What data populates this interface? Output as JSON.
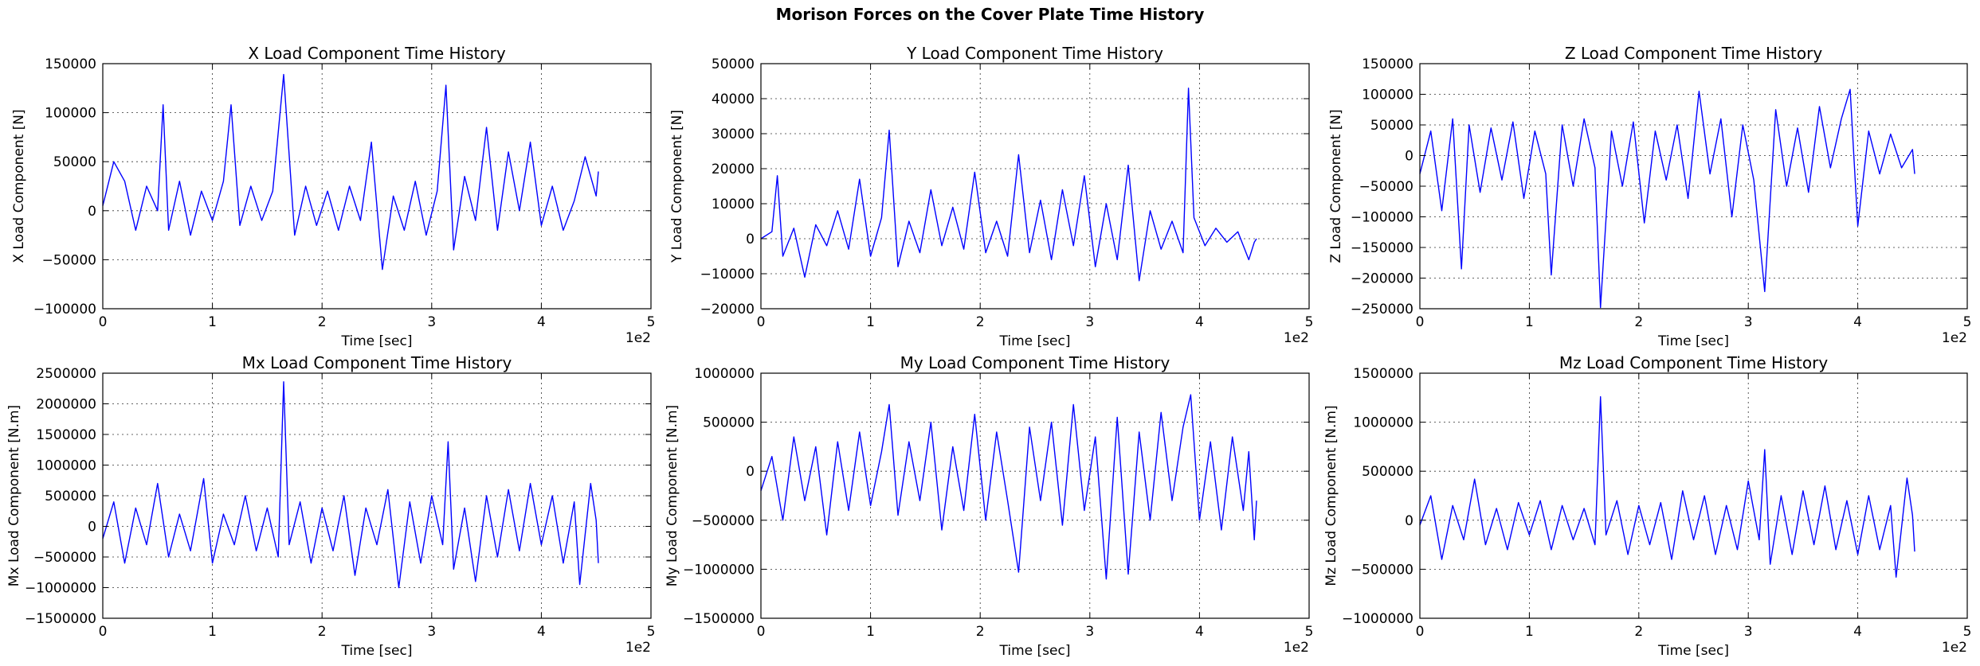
{
  "figure": {
    "suptitle": "Morison Forces on the Cover Plate Time History"
  },
  "chart_data": [
    {
      "type": "line",
      "title": "X Load Component Time History",
      "xlabel": "Time [sec]",
      "ylabel": "X Load Component [N]",
      "xlim": [
        0,
        5
      ],
      "x_offset_text": "1e2",
      "ylim": [
        -100000,
        150000
      ],
      "xticks": [
        0,
        1,
        2,
        3,
        4,
        5
      ],
      "yticks": [
        -100000,
        -50000,
        0,
        50000,
        100000,
        150000
      ],
      "grid": true,
      "color": "#0000ff",
      "series": [
        {
          "x": [
            0,
            0.1,
            0.2,
            0.3,
            0.4,
            0.5,
            0.55,
            0.6,
            0.7,
            0.8,
            0.9,
            1.0,
            1.1,
            1.17,
            1.25,
            1.35,
            1.45,
            1.55,
            1.65,
            1.75,
            1.85,
            1.95,
            2.05,
            2.15,
            2.25,
            2.35,
            2.45,
            2.55,
            2.65,
            2.75,
            2.85,
            2.95,
            3.05,
            3.13,
            3.2,
            3.3,
            3.4,
            3.5,
            3.6,
            3.7,
            3.8,
            3.9,
            4.0,
            4.1,
            4.2,
            4.3,
            4.4,
            4.5,
            4.52
          ],
          "y": [
            5000,
            50000,
            30000,
            -20000,
            25000,
            0,
            108000,
            -20000,
            30000,
            -25000,
            20000,
            -10000,
            30000,
            108000,
            -15000,
            25000,
            -10000,
            20000,
            139000,
            -25000,
            25000,
            -15000,
            20000,
            -20000,
            25000,
            -10000,
            70000,
            -60000,
            15000,
            -20000,
            30000,
            -25000,
            20000,
            128000,
            -40000,
            35000,
            -10000,
            85000,
            -20000,
            60000,
            0,
            70000,
            -15000,
            25000,
            -20000,
            10000,
            55000,
            15000,
            40000
          ]
        }
      ]
    },
    {
      "type": "line",
      "title": "Y Load Component Time History",
      "xlabel": "Time [sec]",
      "ylabel": "Y Load Component [N]",
      "xlim": [
        0,
        5
      ],
      "x_offset_text": "1e2",
      "ylim": [
        -20000,
        50000
      ],
      "xticks": [
        0,
        1,
        2,
        3,
        4,
        5
      ],
      "yticks": [
        -20000,
        -10000,
        0,
        10000,
        20000,
        30000,
        40000,
        50000
      ],
      "grid": true,
      "color": "#0000ff",
      "series": [
        {
          "x": [
            0,
            0.1,
            0.15,
            0.2,
            0.3,
            0.4,
            0.5,
            0.6,
            0.7,
            0.8,
            0.9,
            1.0,
            1.1,
            1.17,
            1.25,
            1.35,
            1.45,
            1.55,
            1.65,
            1.75,
            1.85,
            1.95,
            2.05,
            2.15,
            2.25,
            2.35,
            2.45,
            2.55,
            2.65,
            2.75,
            2.85,
            2.95,
            3.05,
            3.15,
            3.25,
            3.35,
            3.45,
            3.55,
            3.65,
            3.75,
            3.85,
            3.9,
            3.95,
            4.05,
            4.15,
            4.25,
            4.35,
            4.45,
            4.5,
            4.52
          ],
          "y": [
            0,
            2000,
            18000,
            -5000,
            3000,
            -11000,
            4000,
            -2000,
            8000,
            -3000,
            17000,
            -5000,
            6000,
            31000,
            -8000,
            5000,
            -4000,
            14000,
            -2000,
            9000,
            -3000,
            19000,
            -4000,
            5000,
            -5000,
            24000,
            -4000,
            11000,
            -6000,
            14000,
            -2000,
            18000,
            -8000,
            10000,
            -6000,
            21000,
            -12000,
            8000,
            -3000,
            5000,
            -4000,
            43000,
            6000,
            -2000,
            3000,
            -1000,
            2000,
            -6000,
            -1000,
            0
          ]
        }
      ]
    },
    {
      "type": "line",
      "title": "Z Load Component Time History",
      "xlabel": "Time [sec]",
      "ylabel": "Z Load Component [N]",
      "xlim": [
        0,
        5
      ],
      "x_offset_text": "1e2",
      "ylim": [
        -250000,
        150000
      ],
      "xticks": [
        0,
        1,
        2,
        3,
        4,
        5
      ],
      "yticks": [
        -250000,
        -200000,
        -150000,
        -100000,
        -50000,
        0,
        50000,
        100000,
        150000
      ],
      "grid": true,
      "color": "#0000ff",
      "series": [
        {
          "x": [
            0,
            0.1,
            0.2,
            0.3,
            0.38,
            0.45,
            0.55,
            0.65,
            0.75,
            0.85,
            0.95,
            1.05,
            1.15,
            1.2,
            1.3,
            1.4,
            1.5,
            1.6,
            1.65,
            1.75,
            1.85,
            1.95,
            2.05,
            2.15,
            2.25,
            2.35,
            2.45,
            2.55,
            2.65,
            2.75,
            2.85,
            2.95,
            3.05,
            3.15,
            3.25,
            3.35,
            3.45,
            3.55,
            3.65,
            3.75,
            3.85,
            3.93,
            4.0,
            4.1,
            4.2,
            4.3,
            4.4,
            4.5,
            4.52
          ],
          "y": [
            -30000,
            40000,
            -90000,
            60000,
            -185000,
            50000,
            -60000,
            45000,
            -40000,
            55000,
            -70000,
            40000,
            -30000,
            -195000,
            50000,
            -50000,
            60000,
            -20000,
            -248000,
            40000,
            -50000,
            55000,
            -110000,
            40000,
            -40000,
            50000,
            -70000,
            105000,
            -30000,
            60000,
            -100000,
            50000,
            -40000,
            -222000,
            75000,
            -50000,
            45000,
            -60000,
            80000,
            -20000,
            60000,
            108000,
            -115000,
            40000,
            -30000,
            35000,
            -20000,
            10000,
            -30000
          ]
        }
      ]
    },
    {
      "type": "line",
      "title": "Mx Load Component Time History",
      "xlabel": "Time [sec]",
      "ylabel": "Mx Load Component [N.m]",
      "xlim": [
        0,
        5
      ],
      "x_offset_text": "1e2",
      "ylim": [
        -1500000,
        2500000
      ],
      "xticks": [
        0,
        1,
        2,
        3,
        4,
        5
      ],
      "yticks": [
        -1500000,
        -1000000,
        -500000,
        0,
        500000,
        1000000,
        1500000,
        2000000,
        2500000
      ],
      "grid": true,
      "color": "#0000ff",
      "series": [
        {
          "x": [
            0,
            0.1,
            0.2,
            0.3,
            0.4,
            0.5,
            0.6,
            0.7,
            0.8,
            0.92,
            1.0,
            1.1,
            1.2,
            1.3,
            1.4,
            1.5,
            1.6,
            1.65,
            1.7,
            1.8,
            1.9,
            2.0,
            2.1,
            2.2,
            2.3,
            2.4,
            2.5,
            2.6,
            2.7,
            2.8,
            2.9,
            3.0,
            3.1,
            3.15,
            3.2,
            3.3,
            3.4,
            3.5,
            3.6,
            3.7,
            3.8,
            3.9,
            4.0,
            4.1,
            4.2,
            4.3,
            4.35,
            4.45,
            4.5,
            4.52
          ],
          "y": [
            -200000,
            400000,
            -600000,
            300000,
            -300000,
            700000,
            -500000,
            200000,
            -400000,
            780000,
            -600000,
            200000,
            -300000,
            500000,
            -400000,
            300000,
            -500000,
            2360000,
            -300000,
            400000,
            -600000,
            300000,
            -400000,
            500000,
            -800000,
            300000,
            -300000,
            600000,
            -1000000,
            400000,
            -600000,
            500000,
            -300000,
            1380000,
            -700000,
            300000,
            -900000,
            500000,
            -500000,
            600000,
            -400000,
            700000,
            -300000,
            500000,
            -600000,
            400000,
            -950000,
            700000,
            100000,
            -600000
          ]
        }
      ]
    },
    {
      "type": "line",
      "title": "My Load Component Time History",
      "xlabel": "Time [sec]",
      "ylabel": "My Load Component [N.m]",
      "xlim": [
        0,
        5
      ],
      "x_offset_text": "1e2",
      "ylim": [
        -1500000,
        1000000
      ],
      "xticks": [
        0,
        1,
        2,
        3,
        4,
        5
      ],
      "yticks": [
        -1500000,
        -1000000,
        -500000,
        0,
        500000,
        1000000
      ],
      "grid": true,
      "color": "#0000ff",
      "series": [
        {
          "x": [
            0,
            0.1,
            0.2,
            0.3,
            0.4,
            0.5,
            0.6,
            0.7,
            0.8,
            0.9,
            1.0,
            1.1,
            1.17,
            1.25,
            1.35,
            1.45,
            1.55,
            1.65,
            1.75,
            1.85,
            1.95,
            2.05,
            2.15,
            2.25,
            2.35,
            2.45,
            2.55,
            2.65,
            2.75,
            2.85,
            2.95,
            3.05,
            3.15,
            3.25,
            3.35,
            3.45,
            3.55,
            3.65,
            3.75,
            3.85,
            3.92,
            4.0,
            4.1,
            4.2,
            4.3,
            4.4,
            4.45,
            4.5,
            4.52
          ],
          "y": [
            -200000,
            150000,
            -500000,
            350000,
            -300000,
            250000,
            -650000,
            300000,
            -400000,
            400000,
            -350000,
            200000,
            680000,
            -450000,
            300000,
            -300000,
            500000,
            -600000,
            250000,
            -400000,
            580000,
            -500000,
            400000,
            -300000,
            -1030000,
            450000,
            -300000,
            500000,
            -550000,
            680000,
            -400000,
            350000,
            -1100000,
            550000,
            -1050000,
            400000,
            -500000,
            600000,
            -300000,
            450000,
            780000,
            -500000,
            300000,
            -600000,
            350000,
            -400000,
            200000,
            -700000,
            -300000
          ]
        }
      ]
    },
    {
      "type": "line",
      "title": "Mz Load Component Time History",
      "xlabel": "Time [sec]",
      "ylabel": "Mz Load Component [N.m]",
      "xlim": [
        0,
        5
      ],
      "x_offset_text": "1e2",
      "ylim": [
        -1000000,
        1500000
      ],
      "xticks": [
        0,
        1,
        2,
        3,
        4,
        5
      ],
      "yticks": [
        -1000000,
        -500000,
        0,
        500000,
        1000000,
        1500000
      ],
      "grid": true,
      "color": "#0000ff",
      "series": [
        {
          "x": [
            0,
            0.1,
            0.2,
            0.3,
            0.4,
            0.5,
            0.6,
            0.7,
            0.8,
            0.9,
            1.0,
            1.1,
            1.2,
            1.3,
            1.4,
            1.5,
            1.6,
            1.65,
            1.7,
            1.8,
            1.9,
            2.0,
            2.1,
            2.2,
            2.3,
            2.4,
            2.5,
            2.6,
            2.7,
            2.8,
            2.9,
            3.0,
            3.1,
            3.15,
            3.2,
            3.3,
            3.4,
            3.5,
            3.6,
            3.7,
            3.8,
            3.9,
            4.0,
            4.1,
            4.2,
            4.3,
            4.35,
            4.45,
            4.5,
            4.52
          ],
          "y": [
            -50000,
            250000,
            -400000,
            150000,
            -200000,
            420000,
            -250000,
            120000,
            -300000,
            180000,
            -150000,
            200000,
            -300000,
            150000,
            -200000,
            120000,
            -250000,
            1260000,
            -150000,
            200000,
            -350000,
            150000,
            -250000,
            180000,
            -400000,
            300000,
            -200000,
            250000,
            -350000,
            150000,
            -300000,
            400000,
            -200000,
            720000,
            -450000,
            250000,
            -350000,
            300000,
            -250000,
            350000,
            -300000,
            200000,
            -350000,
            250000,
            -300000,
            150000,
            -580000,
            430000,
            50000,
            -320000
          ]
        }
      ]
    }
  ]
}
